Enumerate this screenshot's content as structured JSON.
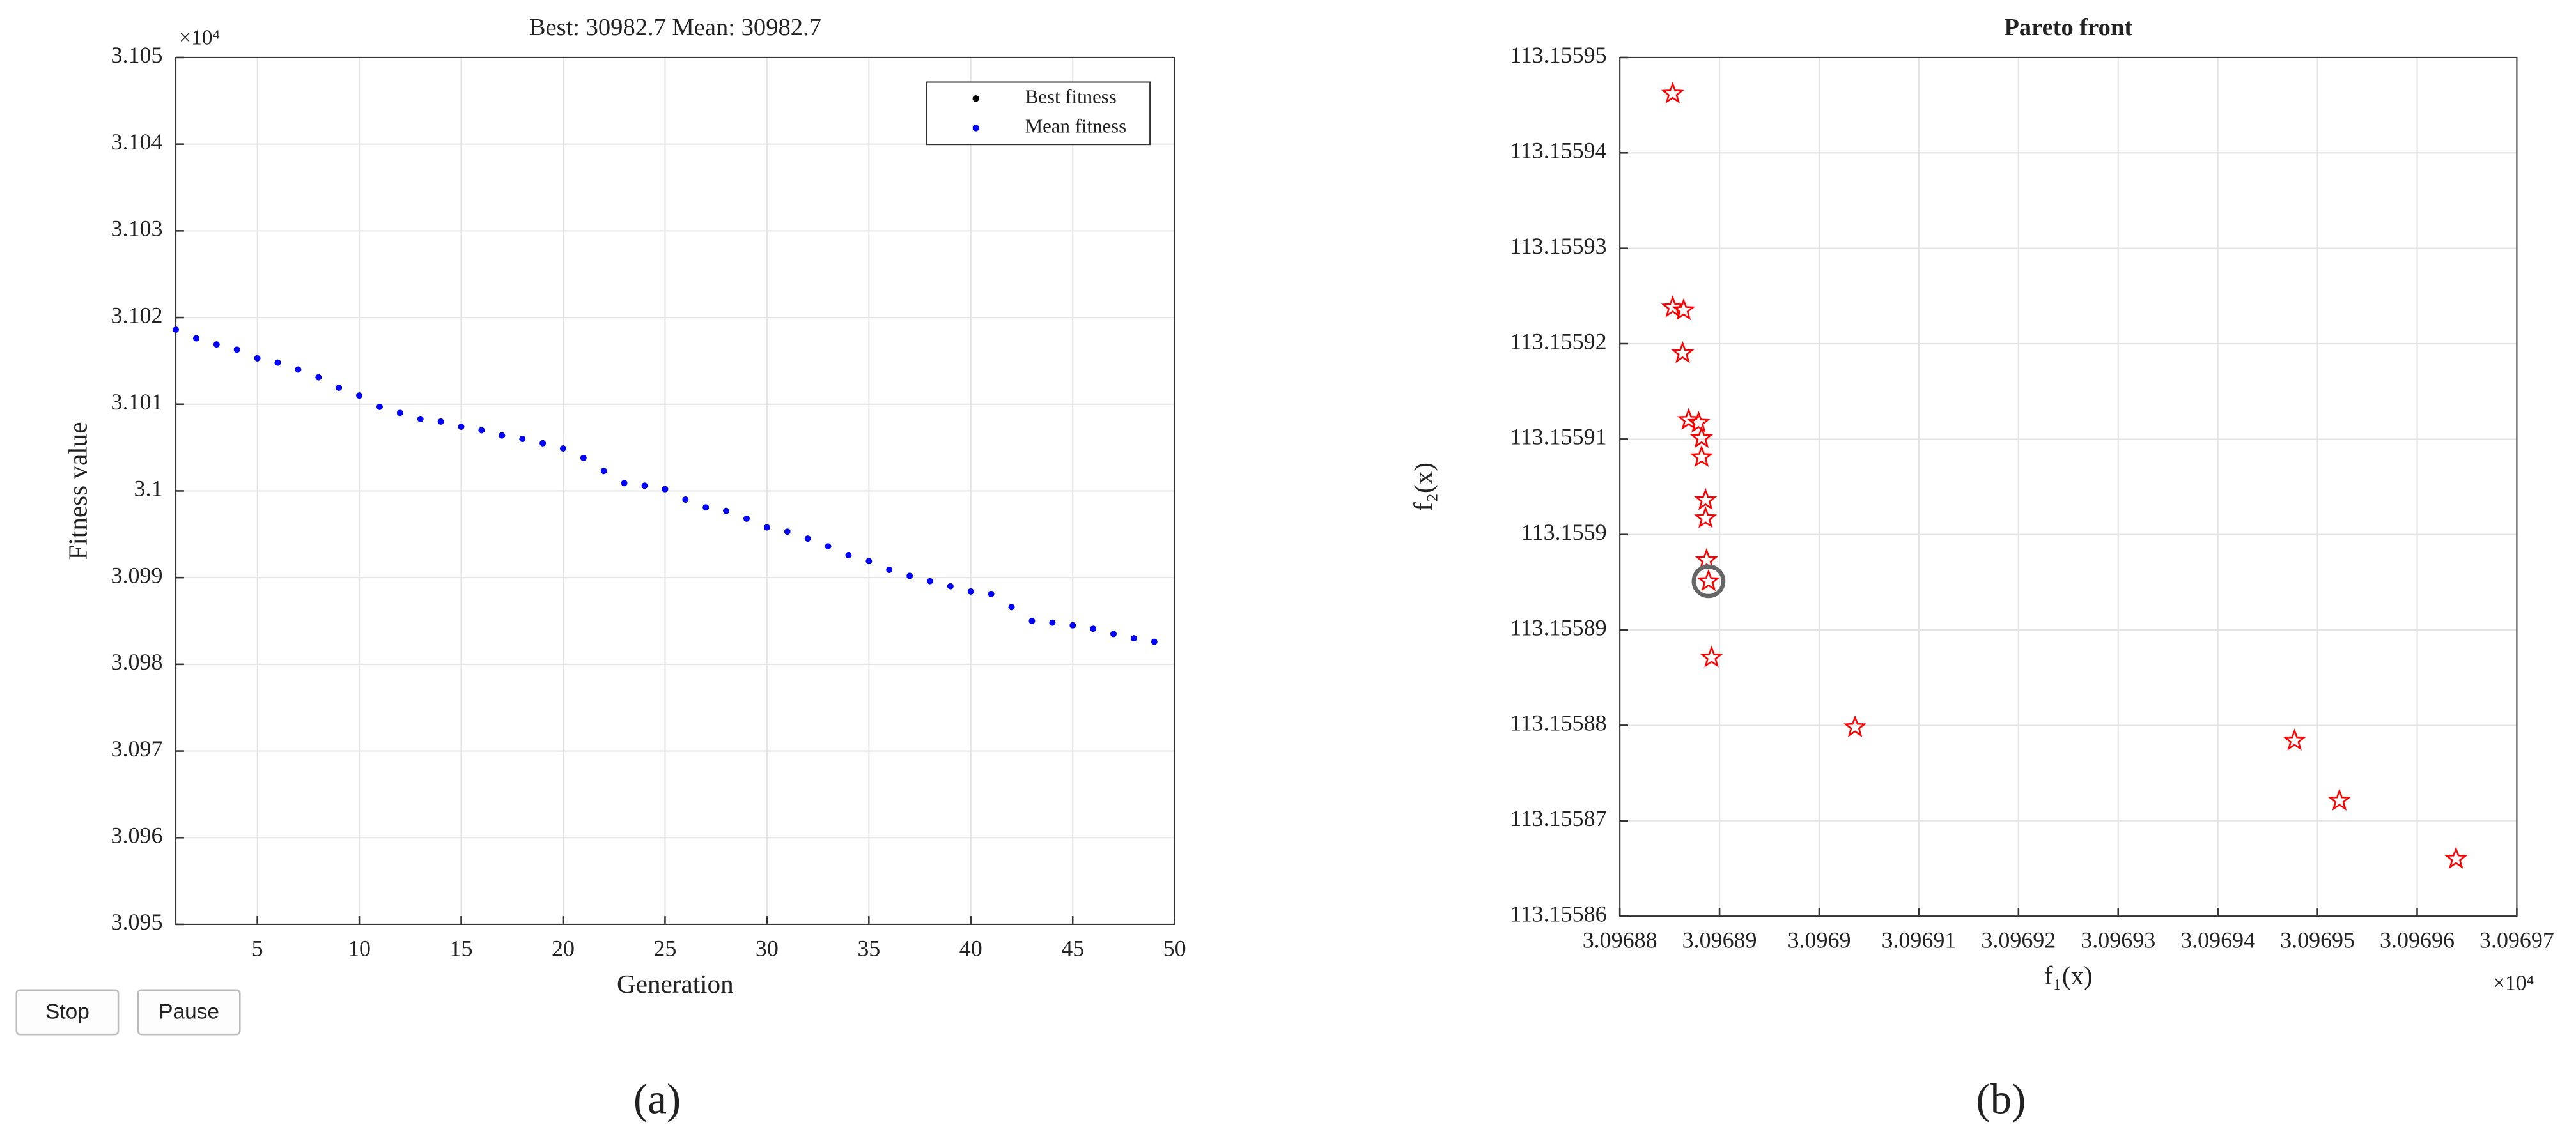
{
  "chart_data": [
    {
      "type": "scatter",
      "title": "Best: 30982.7 Mean: 30982.7",
      "xlabel": "Generation",
      "ylabel": "Fitness value",
      "axis_multiplier": "×10⁴",
      "x": [
        1,
        2,
        3,
        4,
        5,
        6,
        7,
        8,
        9,
        10,
        11,
        12,
        13,
        14,
        15,
        16,
        17,
        18,
        19,
        20,
        21,
        22,
        23,
        24,
        25,
        26,
        27,
        28,
        29,
        30,
        31,
        32,
        33,
        34,
        35,
        36,
        37,
        38,
        39,
        40,
        41,
        42,
        43,
        44,
        45,
        46,
        47,
        48,
        49
      ],
      "series": [
        {
          "name": "Best fitness",
          "color": "#000000",
          "values": [
            3.10186,
            3.10176,
            3.10169,
            3.10163,
            3.10153,
            3.10148,
            3.1014,
            3.10131,
            3.10119,
            3.1011,
            3.10097,
            3.1009,
            3.10083,
            3.1008,
            3.10074,
            3.1007,
            3.10064,
            3.1006,
            3.10055,
            3.10049,
            3.10038,
            3.10023,
            3.10009,
            3.10006,
            3.10002,
            3.0999,
            3.09981,
            3.09977,
            3.09968,
            3.09958,
            3.09953,
            3.09945,
            3.09936,
            3.09926,
            3.09919,
            3.09909,
            3.09902,
            3.09896,
            3.0989,
            3.09884,
            3.09881,
            3.09866,
            3.0985,
            3.09848,
            3.09845,
            3.09841,
            3.09835,
            3.0983,
            3.09826
          ]
        },
        {
          "name": "Mean fitness",
          "color": "#0000ff",
          "values": [
            3.10186,
            3.10176,
            3.10169,
            3.10163,
            3.10153,
            3.10148,
            3.1014,
            3.10131,
            3.10119,
            3.1011,
            3.10097,
            3.1009,
            3.10083,
            3.1008,
            3.10074,
            3.1007,
            3.10064,
            3.1006,
            3.10055,
            3.10049,
            3.10038,
            3.10023,
            3.10009,
            3.10006,
            3.10002,
            3.0999,
            3.09981,
            3.09977,
            3.09968,
            3.09958,
            3.09953,
            3.09945,
            3.09936,
            3.09926,
            3.09919,
            3.09909,
            3.09902,
            3.09896,
            3.0989,
            3.09884,
            3.09881,
            3.09866,
            3.0985,
            3.09848,
            3.09845,
            3.09841,
            3.09835,
            3.0983,
            3.09826
          ]
        }
      ],
      "xlim": [
        1,
        50
      ],
      "xticks": [
        5,
        10,
        15,
        20,
        25,
        30,
        35,
        40,
        45,
        50
      ],
      "ylim": [
        3.095,
        3.105
      ],
      "yticks": [
        3.095,
        3.096,
        3.097,
        3.098,
        3.099,
        3.1,
        3.101,
        3.102,
        3.103,
        3.104,
        3.105
      ],
      "grid": true,
      "legend": "upper-right",
      "marker": "dot"
    },
    {
      "type": "scatter",
      "title": "Pareto front",
      "xlabel": "f₁(x)",
      "ylabel": "f₂(x)",
      "axis_multiplier": "×10⁴",
      "x": [
        3.0968853,
        3.0968853,
        3.0968864,
        3.0968863,
        3.0968869,
        3.0968879,
        3.0968882,
        3.0968882,
        3.0968886,
        3.0968886,
        3.0968887,
        3.0968889,
        3.0968892,
        3.0969036,
        3.0969477,
        3.0969522,
        3.0969639
      ],
      "y": [
        113.1559462,
        113.1559238,
        113.1559235,
        113.155919,
        113.155912,
        113.1559117,
        113.1559101,
        113.1559081,
        113.1559036,
        113.1559017,
        113.1558973,
        113.1558951,
        113.1558871,
        113.1558798,
        113.1558784,
        113.1558721,
        113.155866
      ],
      "color": "#ff0000",
      "marker": "star",
      "highlight_index": 11,
      "xlim": [
        3.09688,
        3.09697
      ],
      "xticks": [
        3.09688,
        3.09689,
        3.0969,
        3.09691,
        3.09692,
        3.09693,
        3.09694,
        3.09695,
        3.09696,
        3.09697
      ],
      "ylim": [
        113.15586,
        113.15595
      ],
      "yticks": [
        113.15586,
        113.15587,
        113.15588,
        113.15589,
        113.1559,
        113.15591,
        113.15592,
        113.15593,
        113.15594,
        113.15595
      ],
      "grid": true
    }
  ],
  "buttons": [
    "Stop",
    "Pause"
  ],
  "panel_labels": [
    "(a)",
    "(b)"
  ]
}
